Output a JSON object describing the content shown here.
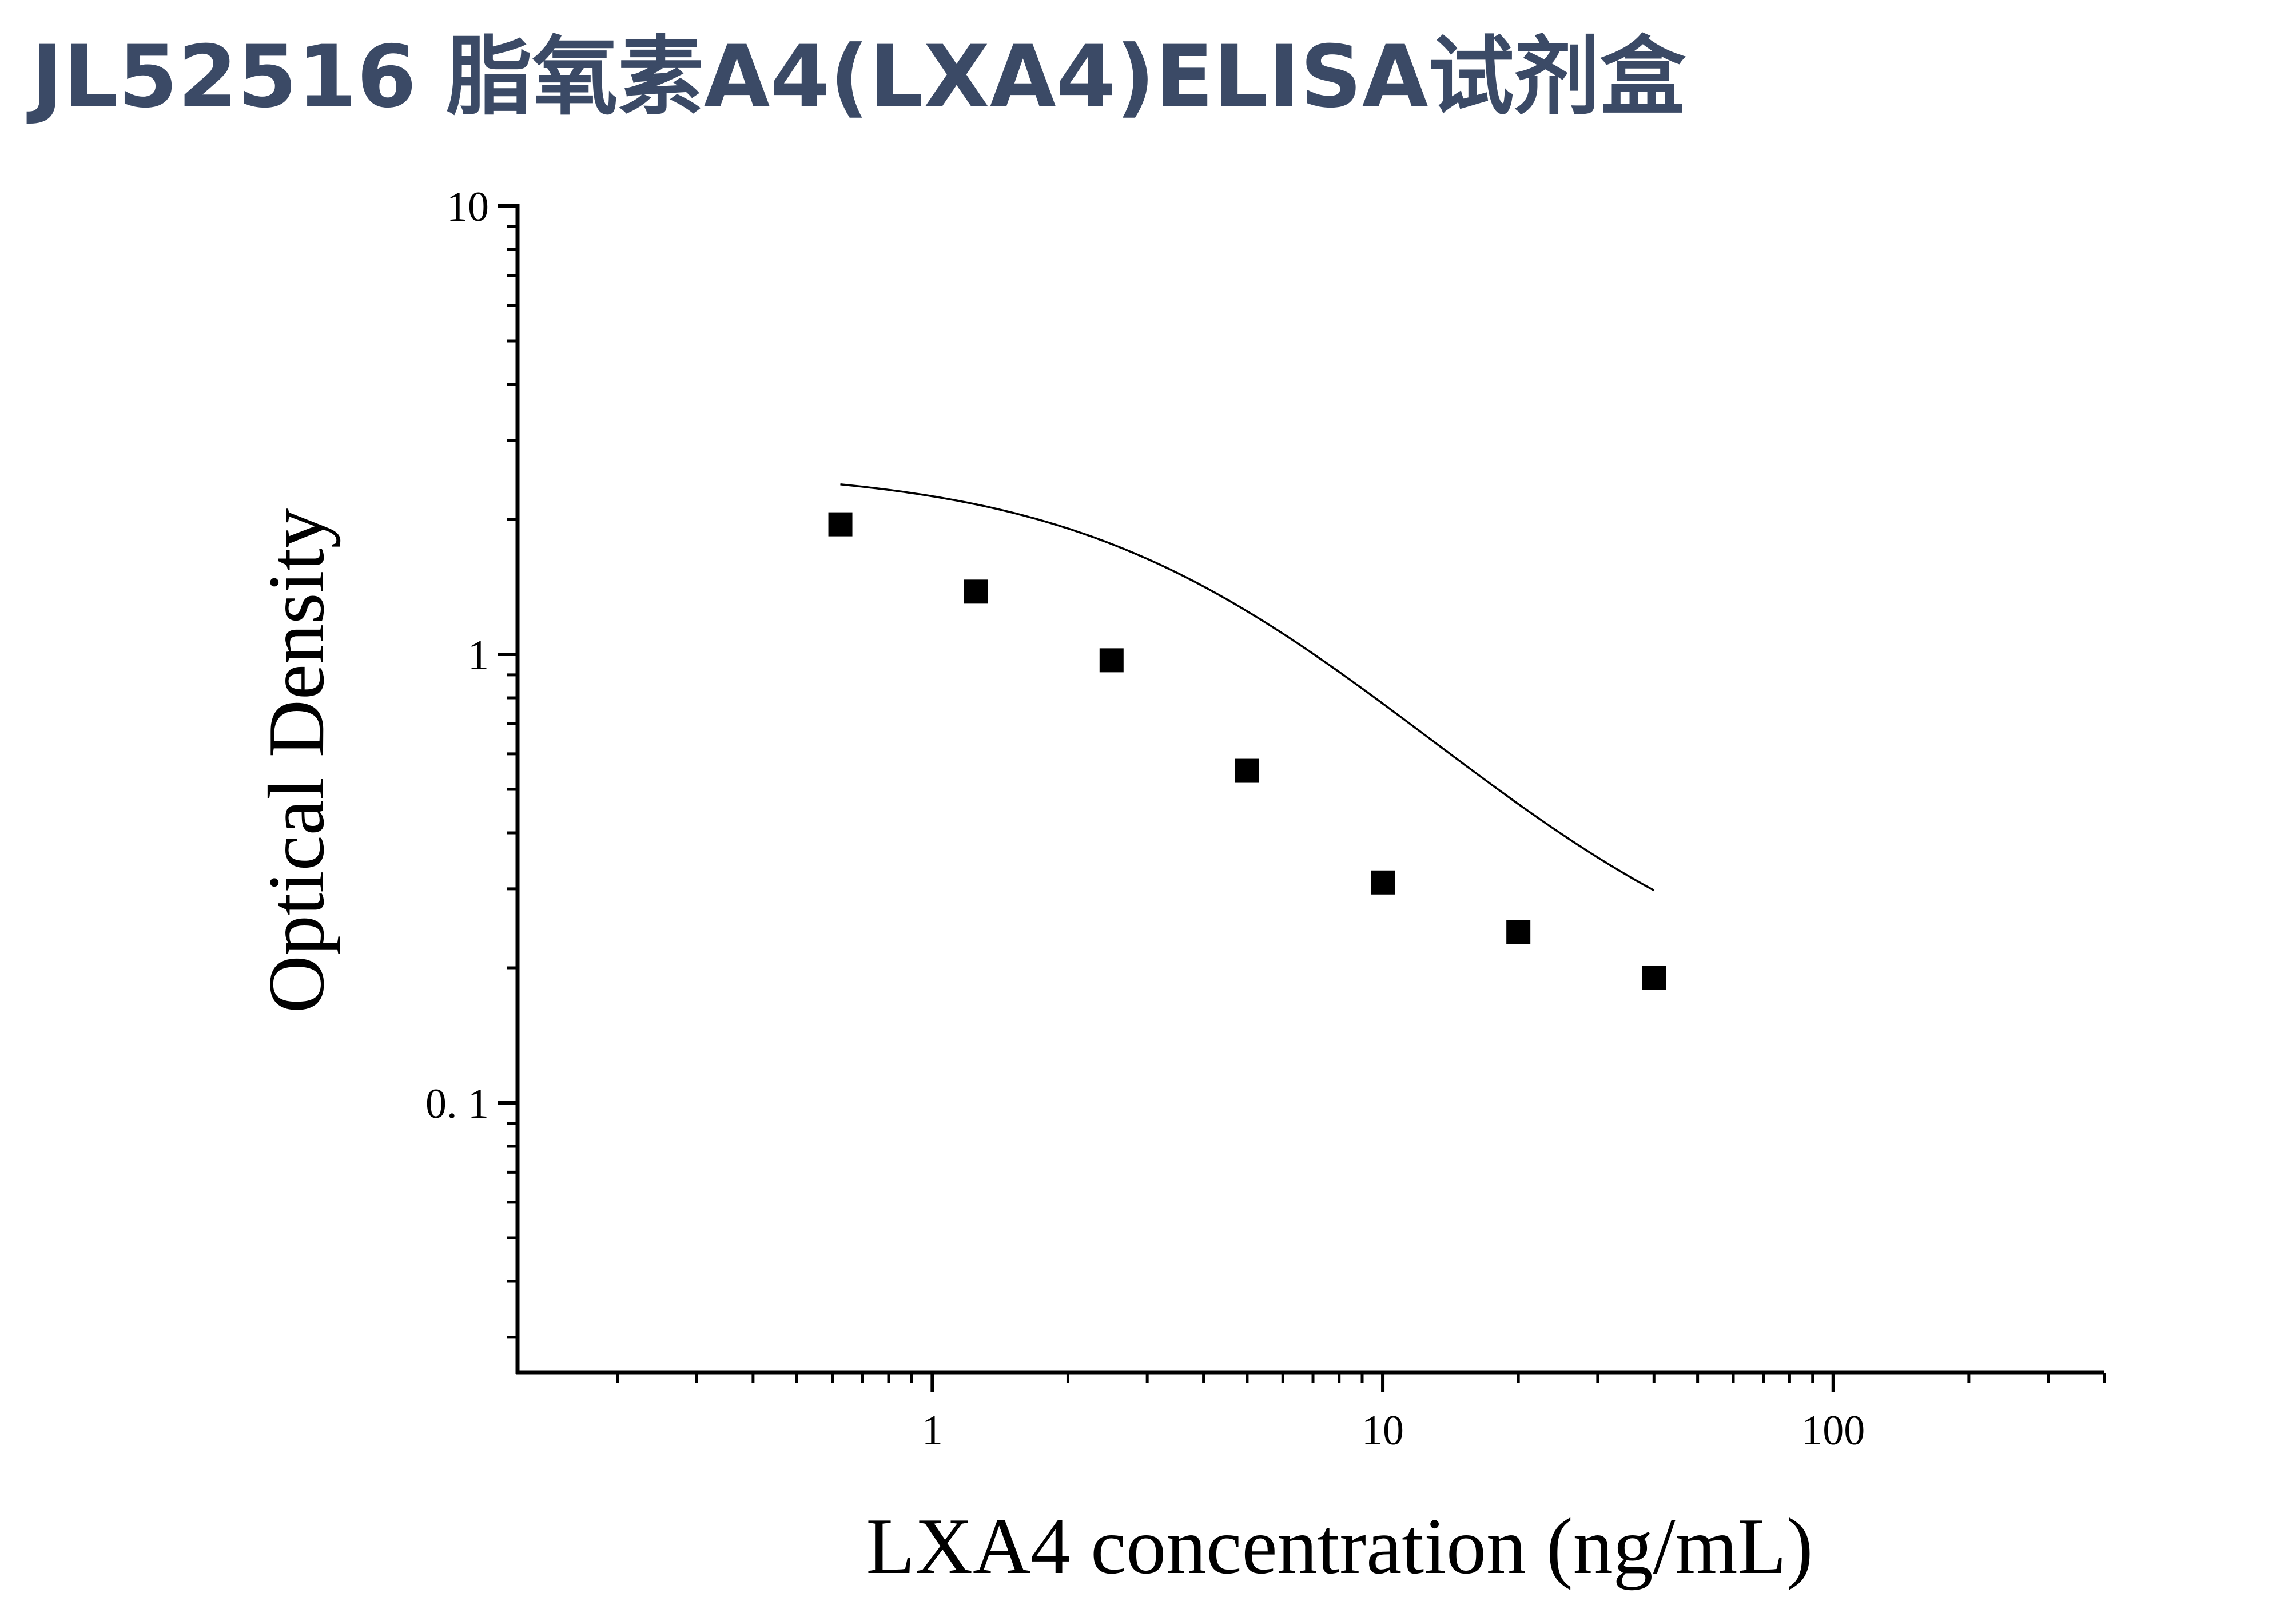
{
  "header": {
    "title": "JL52516 脂氧素A4(LXA4)ELISA试剂盒"
  },
  "chart_data": {
    "type": "scatter",
    "title": "JL52516 脂氧素A4(LXA4)ELISA试剂盒",
    "xlabel": "LXA4 concentration (ng/mL)",
    "ylabel": "Optical Density",
    "xscale": "log",
    "yscale": "log",
    "xlim": [
      0.12,
      400
    ],
    "ylim": [
      0.025,
      10
    ],
    "x_ticks": [
      {
        "value": 1,
        "label": "1"
      },
      {
        "value": 10,
        "label": "10"
      },
      {
        "value": 100,
        "label": "100"
      }
    ],
    "y_ticks": [
      {
        "value": 0.1,
        "label": "0. 1"
      },
      {
        "value": 1,
        "label": "1"
      },
      {
        "value": 10,
        "label": "10"
      }
    ],
    "grid": false,
    "legend": "none",
    "series": [
      {
        "marker": "square",
        "color": "#000000",
        "x": [
          0.625,
          1.25,
          2.5,
          5,
          10,
          20,
          40
        ],
        "y": [
          1.95,
          1.38,
          0.97,
          0.55,
          0.31,
          0.24,
          0.19
        ]
      }
    ],
    "fit_curve": {
      "model": "4PL",
      "color": "#000000",
      "x_range": [
        0.625,
        40
      ],
      "params": {
        "top": 2.6,
        "bottom": 0.16,
        "ec50": 4.2,
        "hill": 1.25
      }
    }
  }
}
